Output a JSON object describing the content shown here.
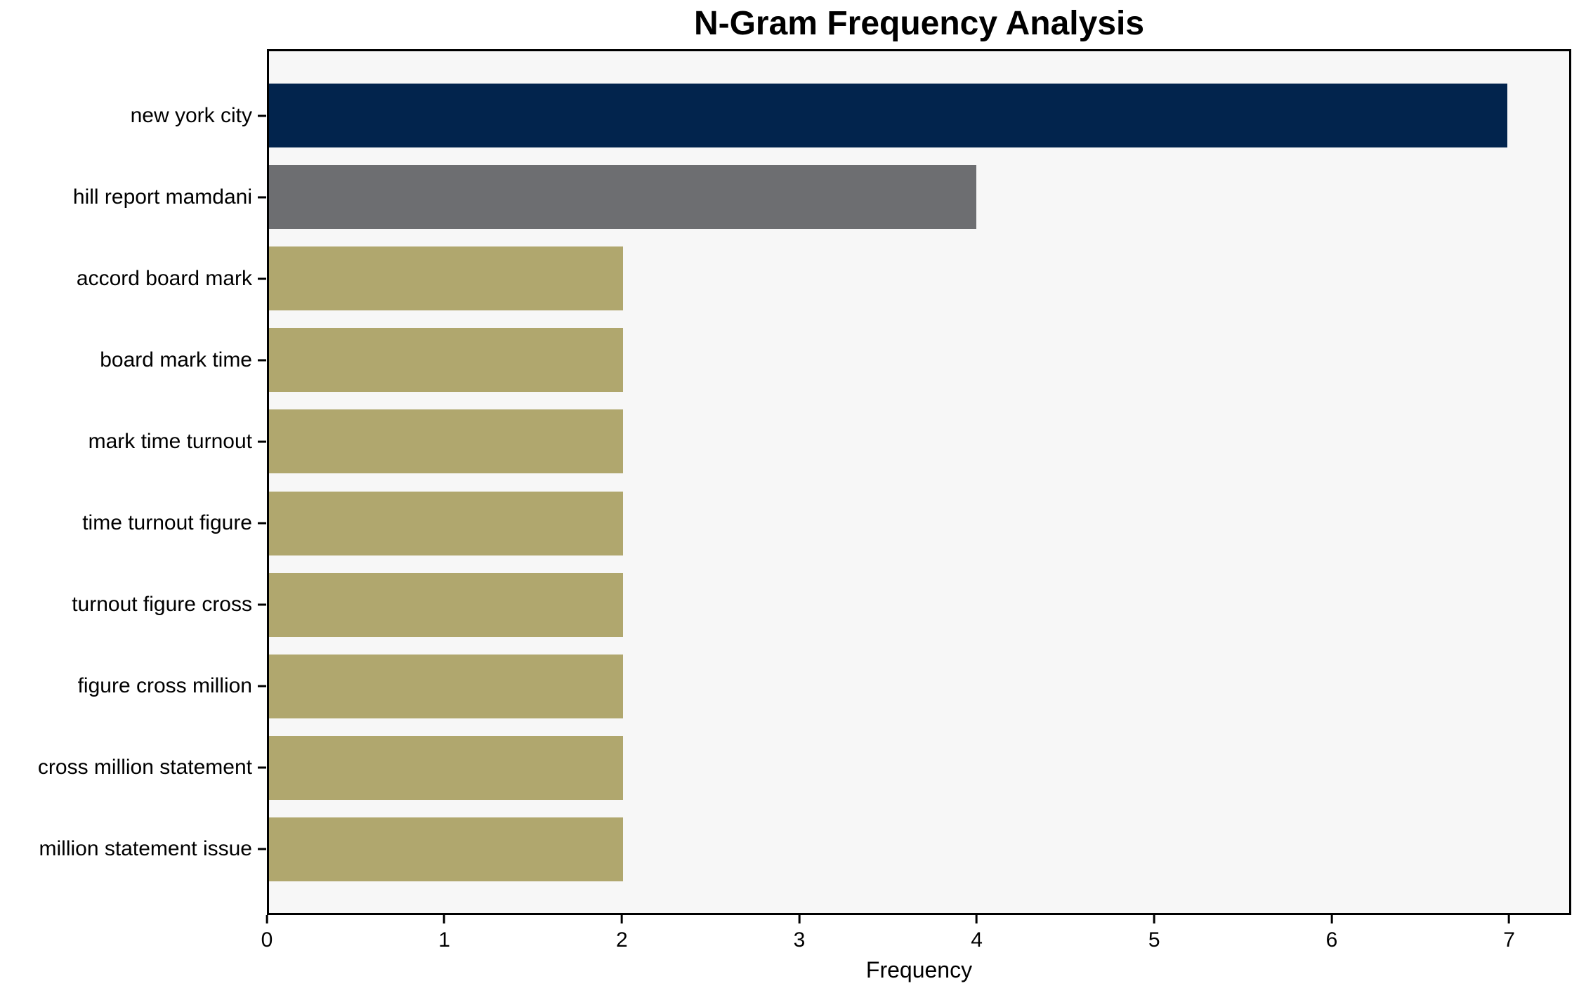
{
  "figure": {
    "background": "#ffffff",
    "plot_background": "#f7f7f7",
    "spine_color": "#000000"
  },
  "chart_data": {
    "type": "bar",
    "orientation": "horizontal",
    "title": "N-Gram Frequency Analysis",
    "xlabel": "Frequency",
    "ylabel": "",
    "categories": [
      "new york city",
      "hill report mamdani",
      "accord board mark",
      "board mark time",
      "mark time turnout",
      "time turnout figure",
      "turnout figure cross",
      "figure cross million",
      "cross million statement",
      "million statement issue"
    ],
    "values": [
      7,
      4,
      2,
      2,
      2,
      2,
      2,
      2,
      2,
      2
    ],
    "bar_colors": [
      "#02244D",
      "#6D6E71",
      "#B0A76E",
      "#B0A76E",
      "#B0A76E",
      "#B0A76E",
      "#B0A76E",
      "#B0A76E",
      "#B0A76E",
      "#B0A76E"
    ],
    "xticks": [
      0,
      1,
      2,
      3,
      4,
      5,
      6,
      7
    ],
    "xlim": [
      0,
      7.35
    ],
    "grid": false,
    "legend_position": "none"
  }
}
